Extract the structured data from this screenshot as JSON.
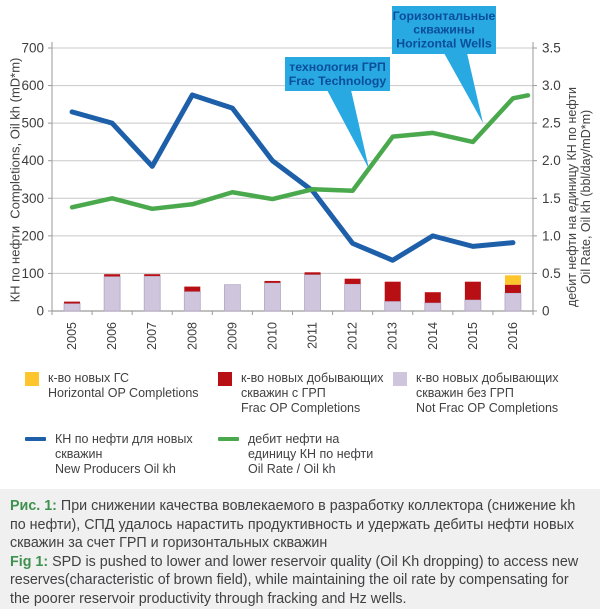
{
  "colors": {
    "blue_line": "#1d5fa9",
    "green_line": "#4aa94c",
    "bar_not_frac": "#cfc5dc",
    "bar_not_frac_border": "#b3a6c4",
    "bar_frac": "#b80f15",
    "bar_horizontal": "#fec52d",
    "callout_bg": "#29a9e1",
    "callout_text": "#0a4e9b",
    "grid": "#c8c8c8",
    "axis": "#9a9a9a",
    "tick_text": "#3d3d3d",
    "caption_bg": "#f0f0f0",
    "caption_accent": "#3f9150",
    "body_text": "#414042"
  },
  "chart_data": {
    "type": "combo-bar-line",
    "categories": [
      "2005",
      "2006",
      "2007",
      "2008",
      "2009",
      "2010",
      "2011",
      "2012",
      "2013",
      "2014",
      "2015",
      "2016"
    ],
    "left_axis": {
      "label": "КН по нефти  Completions, Oil kh (mD*m)",
      "min": 0,
      "max": 700,
      "ticks": [
        0,
        100,
        200,
        300,
        400,
        500,
        600,
        700
      ]
    },
    "right_axis": {
      "label_ru": "дебит нефти на единицу КН по нефти",
      "label_en": "Oil Rate, Oil kh (bbl/day/mD*m)",
      "min": 0,
      "max": 3.5,
      "ticks": [
        "0",
        "0.5",
        "1.0",
        "1.5",
        "2.0",
        "2.5",
        "3.0",
        "3.5"
      ]
    },
    "grid": true,
    "series": [
      {
        "key": "not_frac",
        "name": "Not Frac OP Completions",
        "name_ru": "к-во новых добывающих скважин без ГРП",
        "type": "bar",
        "axis": "left",
        "values": [
          20,
          92,
          93,
          52,
          70,
          75,
          97,
          72,
          26,
          22,
          30,
          48
        ]
      },
      {
        "key": "frac",
        "name": "Frac OP Completions",
        "name_ru": "к-во новых добывающих скважин с ГРП",
        "type": "bar",
        "axis": "left",
        "values": [
          5,
          6,
          5,
          13,
          0,
          5,
          6,
          14,
          52,
          28,
          48,
          22
        ]
      },
      {
        "key": "horizontal",
        "name": "Horizontal OP Completions",
        "name_ru": "к-во новых ГС",
        "type": "bar",
        "axis": "left",
        "values": [
          0,
          0,
          0,
          0,
          0,
          0,
          0,
          0,
          0,
          0,
          0,
          25
        ]
      },
      {
        "key": "oil_kh",
        "name": "New Producers Oil kh",
        "name_ru": "КН по нефти для новых скважин",
        "type": "line",
        "axis": "left",
        "values": [
          530,
          500,
          385,
          575,
          540,
          400,
          320,
          180,
          135,
          200,
          172,
          182
        ]
      },
      {
        "key": "oil_rate",
        "name": "Oil Rate / Oil kh",
        "name_ru": "дебит нефти на единицу КН по нефти",
        "type": "line",
        "axis": "right",
        "values": [
          1.38,
          1.5,
          1.36,
          1.42,
          1.58,
          1.49,
          1.62,
          1.6,
          2.32,
          2.37,
          2.25,
          2.83
        ],
        "tail_value": 2.87
      }
    ],
    "annotations": [
      {
        "key": "frac-technology",
        "lines": [
          "технология ГРП",
          "Frac Technology"
        ]
      },
      {
        "key": "horizontal-wells",
        "lines": [
          "Горизонтальные",
          "скважины",
          "Horizontal Wells"
        ]
      }
    ]
  },
  "legend": {
    "bars": [
      {
        "ru": "к-во новых ГС",
        "en": "Horizontal OP Completions",
        "color_key": "bar_horizontal"
      },
      {
        "ru": "к-во новых добывающих скважин с ГРП",
        "en": "Frac OP Completions",
        "color_key": "bar_frac"
      },
      {
        "ru": "к-во новых добывающих скважин без ГРП",
        "en": "Not Frac OP Completions",
        "color_key": "bar_not_frac"
      }
    ],
    "lines": [
      {
        "ru": "КН по нефти для новых скважин",
        "en": "New Producers Oil kh",
        "color_key": "blue_line"
      },
      {
        "ru": "дебит нефти на единицу КН по нефти",
        "en": "Oil Rate / Oil kh",
        "color_key": "green_line"
      }
    ]
  },
  "caption": {
    "ru_label": "Рис. 1:",
    "ru_text": "При снижении качества вовлекаемого в разработку коллектора (снижение kh по нефти), СПД удалось нарастить продуктивность и удержать дебиты нефти новых скважин за счет ГРП и горизонтальных скважин",
    "en_label": "Fig 1:",
    "en_text": "SPD is pushed to lower and lower reservoir quality (Oil Kh dropping) to access new reserves(characteristic of brown field), while maintaining the oil rate by compensating for the poorer reservoir productivity through fracking and Hz wells."
  }
}
